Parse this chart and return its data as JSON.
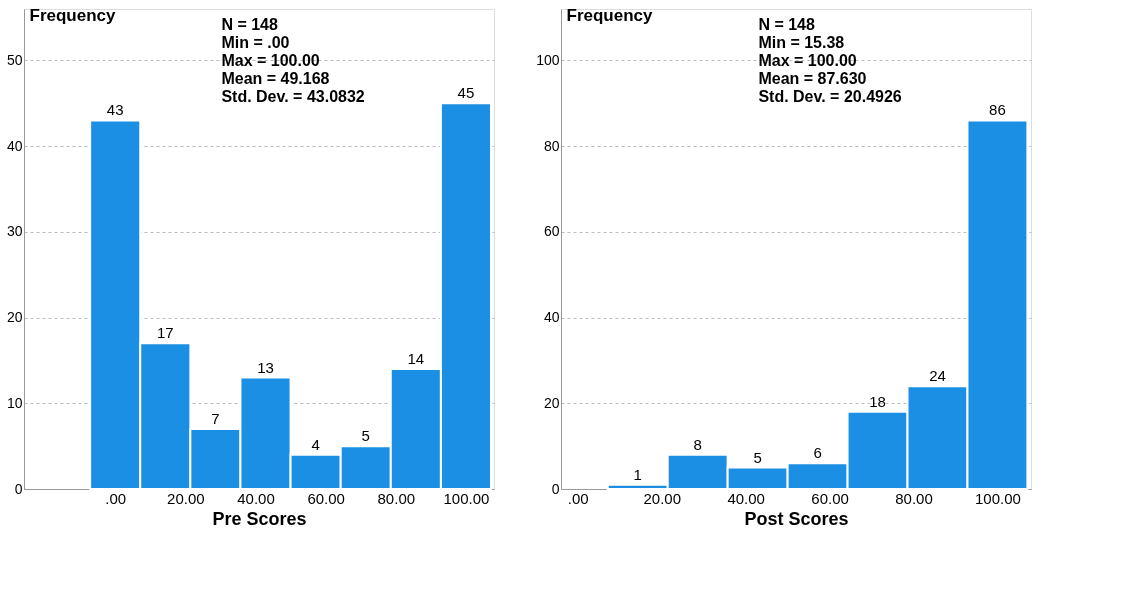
{
  "chart_data": [
    {
      "type": "histogram",
      "xlabel": "Pre Scores",
      "ylabel": "Frequency",
      "color": "#1a8fe3",
      "bins": [
        -7.14,
        7.14,
        21.43,
        35.71,
        50,
        64.29,
        78.57,
        92.86,
        107.14
      ],
      "values": [
        43,
        17,
        7,
        13,
        4,
        5,
        14,
        45
      ],
      "xlim": [
        -26,
        108
      ],
      "ylim": [
        0,
        56
      ],
      "xticks": [
        {
          "value": 0,
          "label": ".00"
        },
        {
          "value": 20,
          "label": "20.00"
        },
        {
          "value": 40,
          "label": "40.00"
        },
        {
          "value": 60,
          "label": "60.00"
        },
        {
          "value": 80,
          "label": "80.00"
        },
        {
          "value": 100,
          "label": "100.00"
        }
      ],
      "yticks": [
        0,
        10,
        20,
        30,
        40,
        50
      ],
      "annotations": [
        "N = 148",
        "Min = .00",
        "Max = 100.00",
        "Mean = 49.168",
        "Std. Dev. = 43.0832"
      ],
      "data_labels": true,
      "grid": "y"
    },
    {
      "type": "histogram",
      "xlabel": "Post Scores",
      "ylabel": "Frequency",
      "color": "#1a8fe3",
      "bins": [
        7.14,
        21.43,
        35.71,
        50,
        64.29,
        78.57,
        92.86,
        107.14
      ],
      "values": [
        1,
        8,
        5,
        6,
        18,
        24,
        86
      ],
      "xlim": [
        -4,
        108
      ],
      "ylim": [
        0,
        112
      ],
      "xticks": [
        {
          "value": 0,
          "label": ".00"
        },
        {
          "value": 20,
          "label": "20.00"
        },
        {
          "value": 40,
          "label": "40.00"
        },
        {
          "value": 60,
          "label": "60.00"
        },
        {
          "value": 80,
          "label": "80.00"
        },
        {
          "value": 100,
          "label": "100.00"
        }
      ],
      "yticks": [
        0,
        20,
        40,
        60,
        80,
        100
      ],
      "annotations": [
        "N = 148",
        "Min = 15.38",
        "Max = 100.00",
        "Mean = 87.630",
        "Std. Dev. = 20.4926"
      ],
      "data_labels": true,
      "grid": "y"
    }
  ]
}
